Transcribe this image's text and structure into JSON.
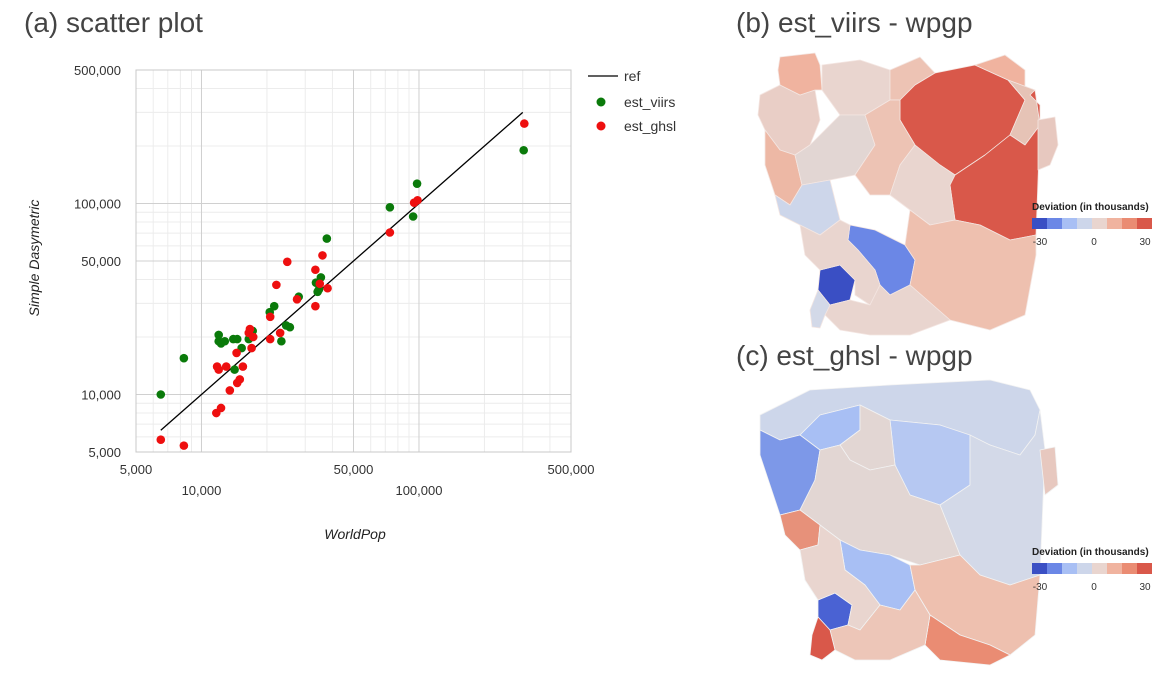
{
  "titles": {
    "a": "(a) scatter plot",
    "b": "(b) est_viirs - wpgp",
    "c": "(c) est_ghsl - wpgp"
  },
  "chart_data": [
    {
      "type": "scatter",
      "title": "(a) scatter plot",
      "xlabel": "WorldPop",
      "ylabel": "Simple Dasymetric",
      "xscale": "log",
      "yscale": "log",
      "xlim": [
        5000,
        500000
      ],
      "ylim": [
        5000,
        500000
      ],
      "x_ticks": [
        {
          "v": 5000,
          "label": "5,000"
        },
        {
          "v": 10000,
          "label": "10,000"
        },
        {
          "v": 50000,
          "label": "50,000"
        },
        {
          "v": 100000,
          "label": "100,000"
        },
        {
          "v": 500000,
          "label": "500,000"
        }
      ],
      "y_ticks": [
        {
          "v": 5000,
          "label": "5,000"
        },
        {
          "v": 10000,
          "label": "10,000"
        },
        {
          "v": 50000,
          "label": "50,000"
        },
        {
          "v": 100000,
          "label": "100,000"
        },
        {
          "v": 500000,
          "label": "500,000"
        }
      ],
      "grid": true,
      "legend_position": "right",
      "reference_line": {
        "name": "ref",
        "color": "#000000",
        "from": [
          6500,
          6500
        ],
        "to": [
          300000,
          300000
        ]
      },
      "series": [
        {
          "name": "est_viirs",
          "color": "#0a7a0a",
          "points": [
            [
              6500,
              10000
            ],
            [
              8300,
              15500
            ],
            [
              12000,
              20500
            ],
            [
              12000,
              19000
            ],
            [
              12300,
              18500
            ],
            [
              12800,
              19000
            ],
            [
              14000,
              19500
            ],
            [
              14200,
              13500
            ],
            [
              14600,
              19500
            ],
            [
              15300,
              17500
            ],
            [
              16500,
              19500
            ],
            [
              17200,
              21500
            ],
            [
              20600,
              27000
            ],
            [
              21600,
              29000
            ],
            [
              23300,
              19000
            ],
            [
              24500,
              23000
            ],
            [
              25500,
              22500
            ],
            [
              28000,
              32500
            ],
            [
              33600,
              38500
            ],
            [
              34200,
              34500
            ],
            [
              34700,
              35500
            ],
            [
              35400,
              41000
            ],
            [
              37700,
              65500
            ],
            [
              73500,
              95500
            ],
            [
              94000,
              85500
            ],
            [
              98000,
              127000
            ],
            [
              303000,
              190000
            ]
          ]
        },
        {
          "name": "est_ghsl",
          "color": "#ee0f0f",
          "points": [
            [
              6500,
              5800
            ],
            [
              8300,
              5400
            ],
            [
              11800,
              14000
            ],
            [
              11700,
              8000
            ],
            [
              12000,
              13500
            ],
            [
              12300,
              8500
            ],
            [
              13000,
              14000
            ],
            [
              13500,
              10500
            ],
            [
              14500,
              16500
            ],
            [
              14600,
              11500
            ],
            [
              15000,
              12000
            ],
            [
              15500,
              14000
            ],
            [
              16500,
              21000
            ],
            [
              16700,
              22000
            ],
            [
              17000,
              17500
            ],
            [
              17300,
              20000
            ],
            [
              20700,
              19500
            ],
            [
              20700,
              25500
            ],
            [
              22100,
              37500
            ],
            [
              23000,
              21000
            ],
            [
              24800,
              49500
            ],
            [
              27500,
              31500
            ],
            [
              33400,
              45000
            ],
            [
              33400,
              29000
            ],
            [
              35000,
              38000
            ],
            [
              36000,
              53500
            ],
            [
              38000,
              36000
            ],
            [
              73500,
              70500
            ],
            [
              95000,
              101000
            ],
            [
              98500,
              104000
            ],
            [
              305000,
              262000
            ]
          ]
        }
      ]
    },
    {
      "type": "heatmap",
      "title": "(b) est_viirs - wpgp",
      "colorbar": {
        "title": "Deviation (in thousands)",
        "min": -30,
        "max": 30,
        "ticks": [
          "-30",
          "0",
          "30"
        ]
      }
    },
    {
      "type": "heatmap",
      "title": "(c) est_ghsl - wpgp",
      "colorbar": {
        "title": "Deviation (in thousands)",
        "min": -30,
        "max": 30,
        "ticks": [
          "-30",
          "0",
          "30"
        ]
      }
    }
  ],
  "colors": {
    "colorbar": [
      "#3a4fc4",
      "#6b87e6",
      "#a8bff4",
      "#cdd6ea",
      "#e9d5cf",
      "#f0b39f",
      "#ea8c73",
      "#d9584a"
    ],
    "ref_line": "#000000",
    "grid_major": "#d0d0d0",
    "grid_minor": "#ececec"
  },
  "map_b": {
    "regions": [
      {
        "name": "northwest-coast",
        "color": "#e9cec6"
      },
      {
        "name": "north-top",
        "color": "#f0b39f"
      },
      {
        "name": "northeast-large",
        "color": "#d9584a"
      },
      {
        "name": "east-large",
        "color": "#d9584a"
      },
      {
        "name": "north-right",
        "color": "#e6b8a6"
      },
      {
        "name": "far-east",
        "color": "#e7c8bf"
      },
      {
        "name": "west",
        "color": "#edb8a5"
      },
      {
        "name": "central-north",
        "color": "#e6d2cd"
      },
      {
        "name": "central",
        "color": "#edc3b4"
      },
      {
        "name": "south-east",
        "color": "#eec0af"
      },
      {
        "name": "south",
        "color": "#edc6b8"
      },
      {
        "name": "southwest-coast",
        "color": "#d3d9e8"
      },
      {
        "name": "blue-mid",
        "color": "#6b87e6"
      },
      {
        "name": "blue-dark",
        "color": "#3a4fc4"
      },
      {
        "name": "west-light",
        "color": "#cdd6ea"
      }
    ]
  },
  "map_c": {
    "regions": [
      {
        "name": "north",
        "color": "#cdd6ea"
      },
      {
        "name": "northwest-blue",
        "color": "#a8bff4"
      },
      {
        "name": "west-blue",
        "color": "#7d98e8"
      },
      {
        "name": "central-blue",
        "color": "#b6c8f2"
      },
      {
        "name": "east",
        "color": "#d3d9e8"
      },
      {
        "name": "far-east",
        "color": "#e7c8bf"
      },
      {
        "name": "central",
        "color": "#e2d6d3"
      },
      {
        "name": "mid-blue",
        "color": "#a8bff4"
      },
      {
        "name": "south-dark-blue",
        "color": "#4a62d3"
      },
      {
        "name": "south-east",
        "color": "#eec0af"
      },
      {
        "name": "south-orange",
        "color": "#ea8c73"
      },
      {
        "name": "south",
        "color": "#edc6b8"
      },
      {
        "name": "coast-orange",
        "color": "#e7917a"
      },
      {
        "name": "tip-red",
        "color": "#d9584a"
      }
    ]
  }
}
